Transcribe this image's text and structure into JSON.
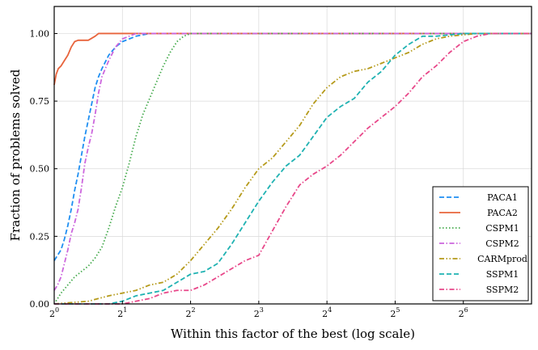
{
  "chart_data": {
    "type": "line",
    "title": "",
    "xlabel": "Within this factor of the best (log scale)",
    "ylabel": "Fraction of problems solved",
    "xscale": "log2",
    "xlim_log2": [
      0,
      7
    ],
    "ylim": [
      0,
      1.1
    ],
    "x_ticks": [
      {
        "base": "2",
        "exp": "0",
        "log2": 0
      },
      {
        "base": "2",
        "exp": "1",
        "log2": 1
      },
      {
        "base": "2",
        "exp": "2",
        "log2": 2
      },
      {
        "base": "2",
        "exp": "3",
        "log2": 3
      },
      {
        "base": "2",
        "exp": "4",
        "log2": 4
      },
      {
        "base": "2",
        "exp": "5",
        "log2": 5
      },
      {
        "base": "2",
        "exp": "6",
        "log2": 6
      }
    ],
    "y_ticks": [
      {
        "label": "0.00",
        "value": 0.0
      },
      {
        "label": "0.25",
        "value": 0.25
      },
      {
        "label": "0.50",
        "value": 0.5
      },
      {
        "label": "0.75",
        "value": 0.75
      },
      {
        "label": "1.00",
        "value": 1.0
      }
    ],
    "grid": true,
    "legend_position": "bottom-right",
    "series": [
      {
        "name": "PACA1",
        "color": "#1f8ff2",
        "dash": "dashed",
        "points": [
          [
            0,
            0.16
          ],
          [
            0.05,
            0.18
          ],
          [
            0.1,
            0.2
          ],
          [
            0.15,
            0.24
          ],
          [
            0.2,
            0.29
          ],
          [
            0.25,
            0.35
          ],
          [
            0.3,
            0.42
          ],
          [
            0.35,
            0.48
          ],
          [
            0.4,
            0.55
          ],
          [
            0.45,
            0.62
          ],
          [
            0.5,
            0.68
          ],
          [
            0.55,
            0.74
          ],
          [
            0.6,
            0.8
          ],
          [
            0.65,
            0.84
          ],
          [
            0.7,
            0.87
          ],
          [
            0.8,
            0.92
          ],
          [
            0.9,
            0.95
          ],
          [
            1.0,
            0.97
          ],
          [
            1.1,
            0.98
          ],
          [
            1.2,
            0.99
          ],
          [
            1.3,
            0.995
          ],
          [
            1.4,
            1.0
          ],
          [
            7,
            1.0
          ]
        ]
      },
      {
        "name": "PACA2",
        "color": "#e8643c",
        "dash": "solid",
        "points": [
          [
            0,
            0.81
          ],
          [
            0.03,
            0.85
          ],
          [
            0.06,
            0.87
          ],
          [
            0.1,
            0.88
          ],
          [
            0.15,
            0.9
          ],
          [
            0.2,
            0.92
          ],
          [
            0.25,
            0.95
          ],
          [
            0.3,
            0.97
          ],
          [
            0.35,
            0.975
          ],
          [
            0.5,
            0.975
          ],
          [
            0.6,
            0.99
          ],
          [
            0.65,
            1.0
          ],
          [
            7,
            1.0
          ]
        ]
      },
      {
        "name": "CSPM1",
        "color": "#44aa4c",
        "dash": "dotted",
        "points": [
          [
            0,
            0.0
          ],
          [
            0.05,
            0.02
          ],
          [
            0.1,
            0.04
          ],
          [
            0.2,
            0.07
          ],
          [
            0.3,
            0.1
          ],
          [
            0.4,
            0.12
          ],
          [
            0.5,
            0.14
          ],
          [
            0.6,
            0.17
          ],
          [
            0.7,
            0.21
          ],
          [
            0.8,
            0.28
          ],
          [
            0.9,
            0.36
          ],
          [
            1.0,
            0.43
          ],
          [
            1.1,
            0.52
          ],
          [
            1.2,
            0.62
          ],
          [
            1.3,
            0.7
          ],
          [
            1.4,
            0.76
          ],
          [
            1.5,
            0.82
          ],
          [
            1.6,
            0.88
          ],
          [
            1.7,
            0.93
          ],
          [
            1.8,
            0.97
          ],
          [
            1.9,
            0.99
          ],
          [
            2.0,
            1.0
          ],
          [
            7,
            1.0
          ]
        ]
      },
      {
        "name": "CSPM2",
        "color": "#cc66dd",
        "dash": "dashdot",
        "points": [
          [
            0,
            0.05
          ],
          [
            0.05,
            0.07
          ],
          [
            0.1,
            0.1
          ],
          [
            0.15,
            0.15
          ],
          [
            0.2,
            0.2
          ],
          [
            0.25,
            0.26
          ],
          [
            0.3,
            0.3
          ],
          [
            0.35,
            0.35
          ],
          [
            0.4,
            0.43
          ],
          [
            0.45,
            0.52
          ],
          [
            0.5,
            0.58
          ],
          [
            0.55,
            0.63
          ],
          [
            0.6,
            0.7
          ],
          [
            0.65,
            0.78
          ],
          [
            0.7,
            0.84
          ],
          [
            0.8,
            0.9
          ],
          [
            0.9,
            0.95
          ],
          [
            1.0,
            0.98
          ],
          [
            1.1,
            0.99
          ],
          [
            1.2,
            1.0
          ],
          [
            7,
            1.0
          ]
        ]
      },
      {
        "name": "CARMprod",
        "color": "#b59a1a",
        "dash": "dashdotdot",
        "points": [
          [
            0,
            0.0
          ],
          [
            0.5,
            0.01
          ],
          [
            0.8,
            0.03
          ],
          [
            1.0,
            0.04
          ],
          [
            1.2,
            0.05
          ],
          [
            1.4,
            0.07
          ],
          [
            1.6,
            0.08
          ],
          [
            1.8,
            0.11
          ],
          [
            2.0,
            0.16
          ],
          [
            2.2,
            0.22
          ],
          [
            2.4,
            0.28
          ],
          [
            2.6,
            0.35
          ],
          [
            2.8,
            0.43
          ],
          [
            3.0,
            0.5
          ],
          [
            3.2,
            0.54
          ],
          [
            3.4,
            0.6
          ],
          [
            3.6,
            0.66
          ],
          [
            3.8,
            0.74
          ],
          [
            4.0,
            0.8
          ],
          [
            4.2,
            0.84
          ],
          [
            4.4,
            0.86
          ],
          [
            4.6,
            0.87
          ],
          [
            4.8,
            0.89
          ],
          [
            5.0,
            0.91
          ],
          [
            5.2,
            0.93
          ],
          [
            5.4,
            0.96
          ],
          [
            5.6,
            0.98
          ],
          [
            5.8,
            0.99
          ],
          [
            6.2,
            1.0
          ],
          [
            7,
            1.0
          ]
        ]
      },
      {
        "name": "SSPM1",
        "color": "#1fb2b2",
        "dash": "dashed",
        "points": [
          [
            0,
            0.0
          ],
          [
            0.8,
            0.0
          ],
          [
            1.0,
            0.01
          ],
          [
            1.2,
            0.03
          ],
          [
            1.4,
            0.04
          ],
          [
            1.6,
            0.05
          ],
          [
            1.8,
            0.08
          ],
          [
            2.0,
            0.11
          ],
          [
            2.2,
            0.12
          ],
          [
            2.4,
            0.15
          ],
          [
            2.6,
            0.22
          ],
          [
            2.8,
            0.3
          ],
          [
            3.0,
            0.38
          ],
          [
            3.2,
            0.45
          ],
          [
            3.4,
            0.51
          ],
          [
            3.6,
            0.55
          ],
          [
            3.8,
            0.62
          ],
          [
            4.0,
            0.69
          ],
          [
            4.2,
            0.73
          ],
          [
            4.4,
            0.76
          ],
          [
            4.6,
            0.82
          ],
          [
            4.8,
            0.86
          ],
          [
            5.0,
            0.92
          ],
          [
            5.2,
            0.96
          ],
          [
            5.4,
            0.99
          ],
          [
            5.6,
            0.99
          ],
          [
            6.0,
            1.0
          ],
          [
            7,
            1.0
          ]
        ]
      },
      {
        "name": "SSPM2",
        "color": "#e8488a",
        "dash": "dashdot",
        "points": [
          [
            0,
            0.0
          ],
          [
            1.0,
            0.0
          ],
          [
            1.2,
            0.01
          ],
          [
            1.4,
            0.02
          ],
          [
            1.6,
            0.04
          ],
          [
            1.8,
            0.05
          ],
          [
            2.0,
            0.05
          ],
          [
            2.2,
            0.07
          ],
          [
            2.4,
            0.1
          ],
          [
            2.6,
            0.13
          ],
          [
            2.8,
            0.16
          ],
          [
            3.0,
            0.18
          ],
          [
            3.2,
            0.27
          ],
          [
            3.4,
            0.36
          ],
          [
            3.6,
            0.44
          ],
          [
            3.8,
            0.48
          ],
          [
            4.0,
            0.51
          ],
          [
            4.2,
            0.55
          ],
          [
            4.4,
            0.6
          ],
          [
            4.6,
            0.65
          ],
          [
            4.8,
            0.69
          ],
          [
            5.0,
            0.73
          ],
          [
            5.2,
            0.78
          ],
          [
            5.4,
            0.84
          ],
          [
            5.6,
            0.88
          ],
          [
            5.8,
            0.93
          ],
          [
            6.0,
            0.97
          ],
          [
            6.2,
            0.99
          ],
          [
            6.4,
            1.0
          ],
          [
            7,
            1.0
          ]
        ]
      }
    ]
  }
}
